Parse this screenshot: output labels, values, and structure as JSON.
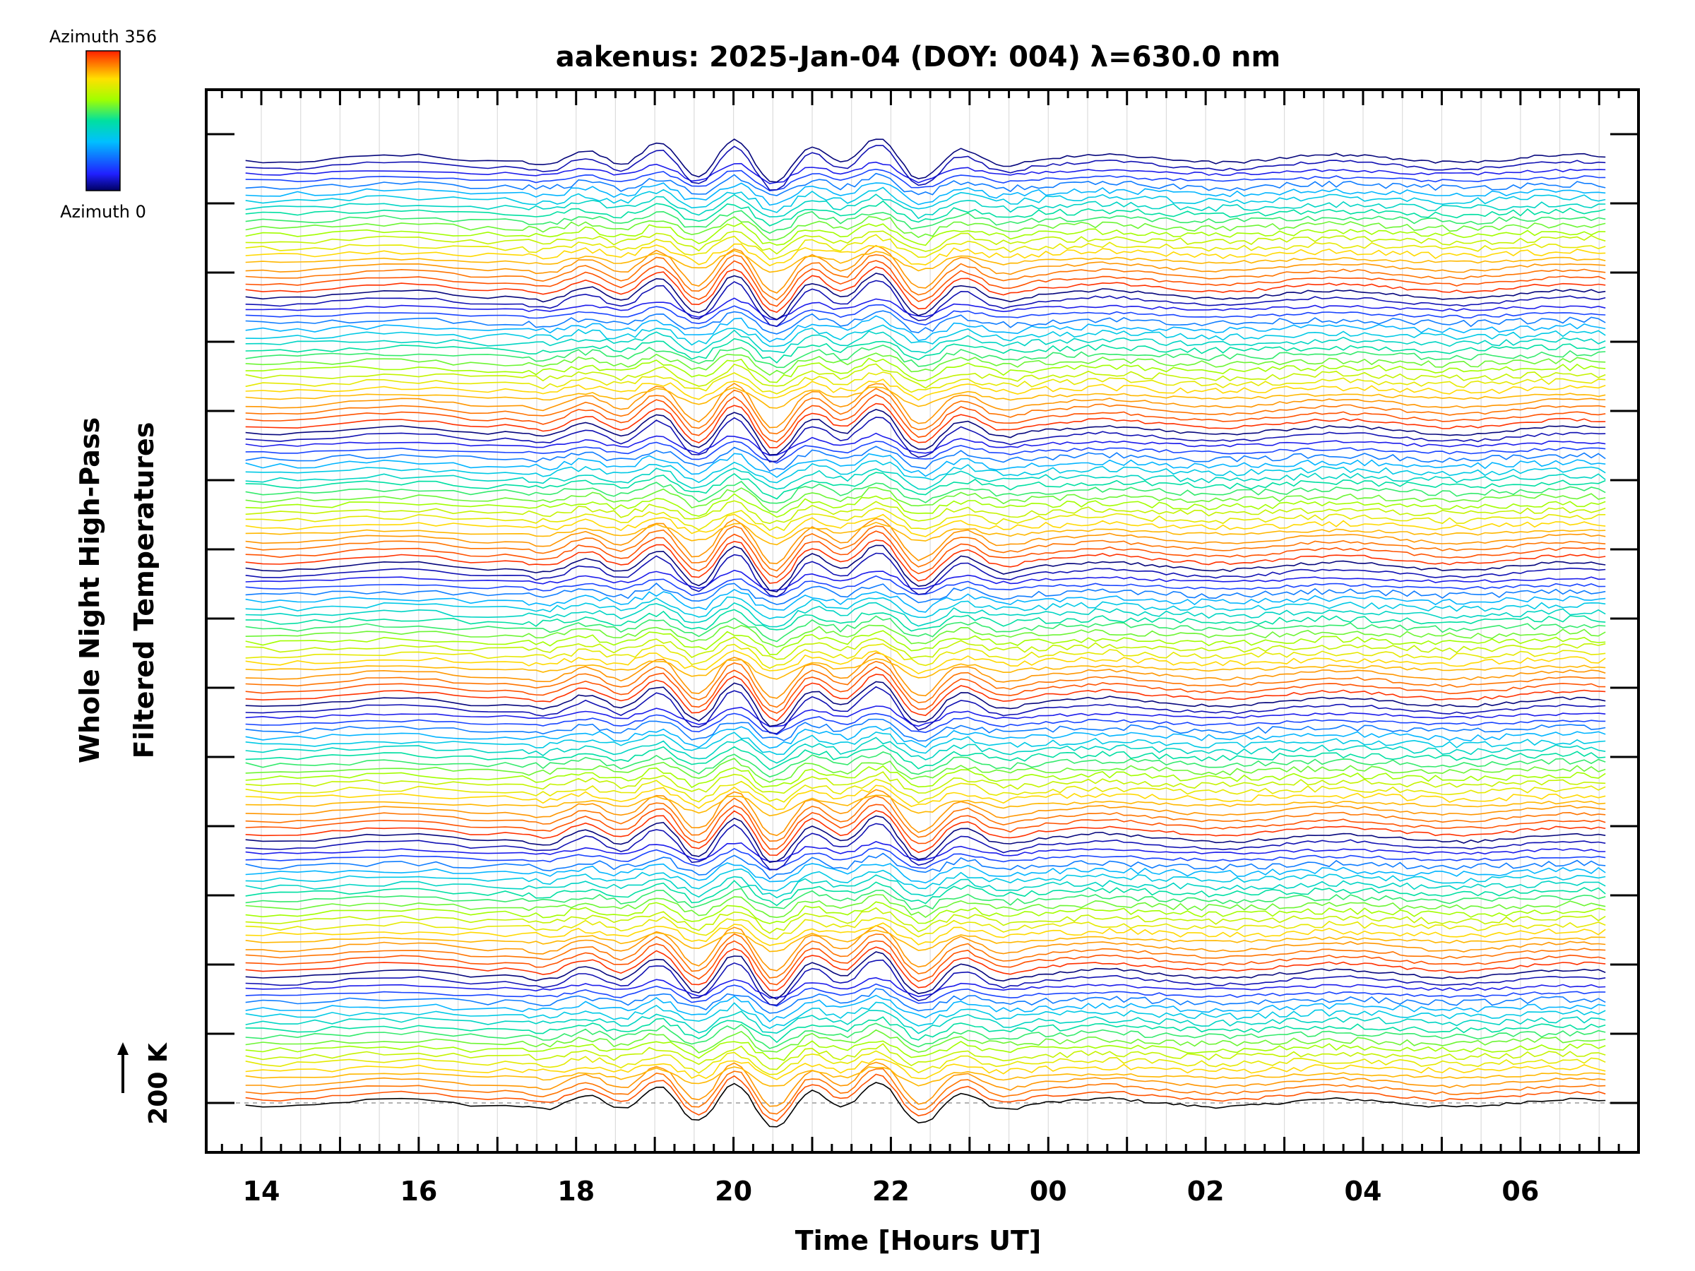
{
  "chart_data": {
    "type": "line",
    "title": "aakenus: 2025-Jan-04 (DOY: 004) λ=630.0 nm",
    "xlabel": "Time [Hours UT]",
    "ylabel_line1": "Whole Night High-Pass",
    "ylabel_line2": "Filtered Temperatures",
    "x_tick_labels": [
      "14",
      "16",
      "18",
      "20",
      "22",
      "00",
      "02",
      "04",
      "06"
    ],
    "x_tick_hours": [
      14,
      16,
      18,
      20,
      22,
      24,
      26,
      28,
      30
    ],
    "xlim_hours": [
      13.3,
      31.5
    ],
    "data_xrange_hours": [
      13.8,
      31.1
    ],
    "scale_label": "200 K",
    "colorbar": {
      "top_label": "Azimuth  356",
      "bottom_label": "Azimuth  0",
      "colors": [
        "#000060",
        "#2020ff",
        "#00c0ff",
        "#00e0a0",
        "#a0ff00",
        "#ffe000",
        "#ff8000",
        "#ff2000"
      ]
    },
    "series_groups": 7,
    "traces_per_group": 20,
    "baseline_dashed": true
  }
}
